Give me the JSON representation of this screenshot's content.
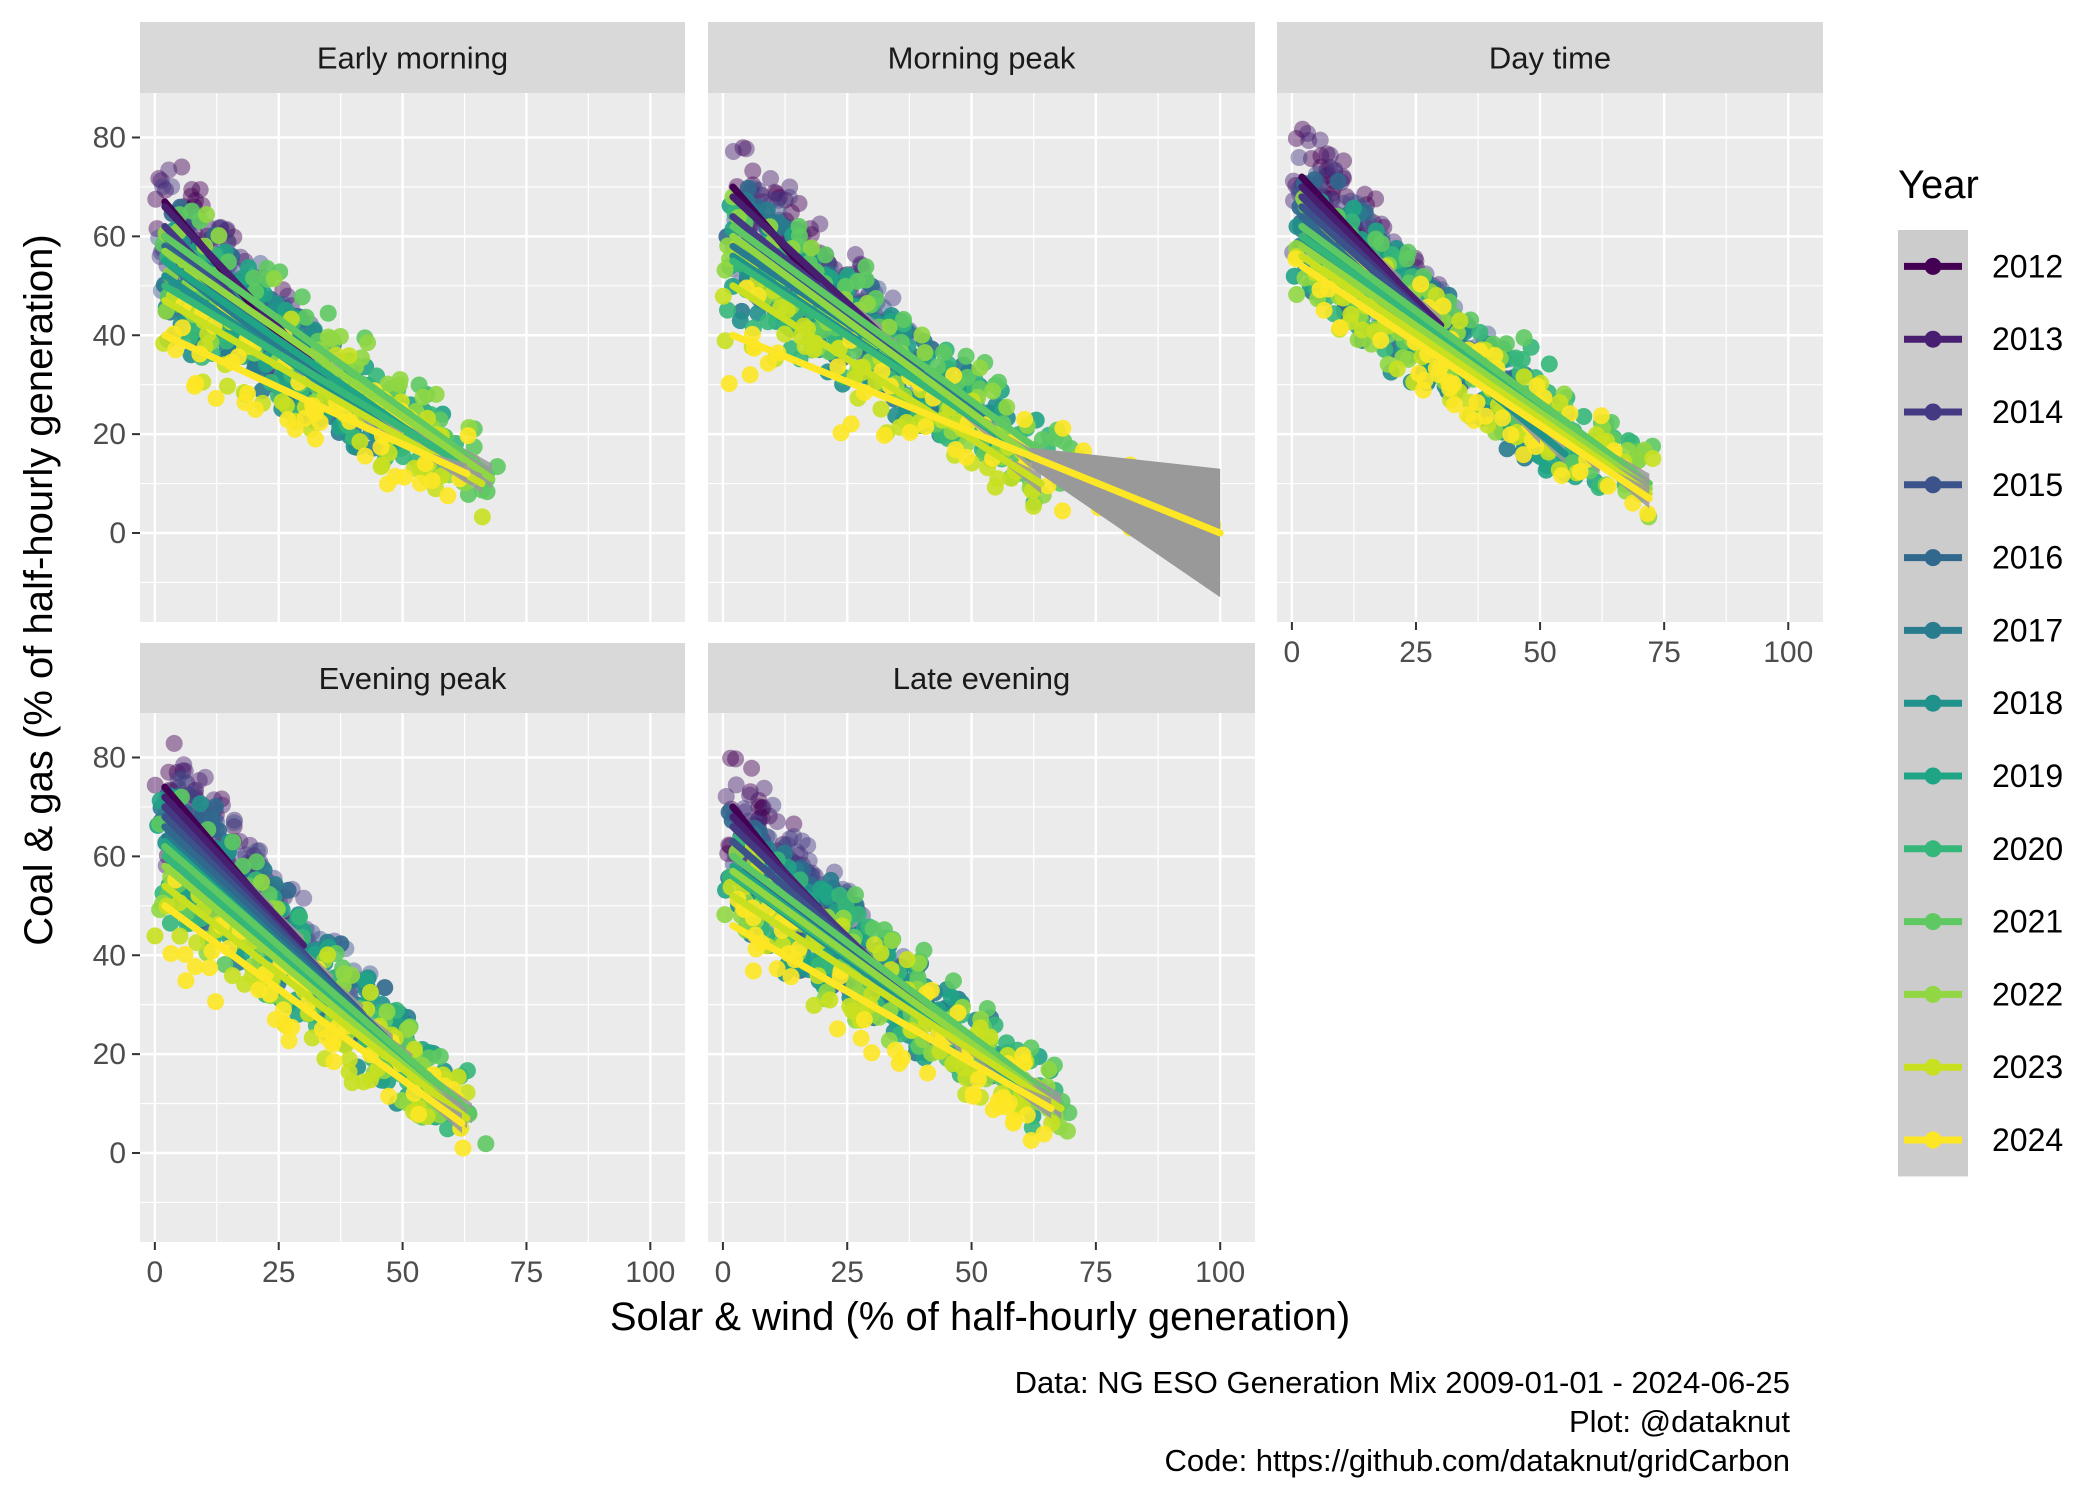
{
  "chart_data": {
    "type": "scatter",
    "xlabel": "Solar & wind (% of half-hourly generation)",
    "ylabel": "Coal & gas (% of half-hourly generation)",
    "xlim": [
      -3,
      107
    ],
    "ylim": [
      -18,
      89
    ],
    "x_ticks": [
      0,
      25,
      50,
      75,
      100
    ],
    "y_ticks": [
      0,
      20,
      40,
      60,
      80
    ],
    "grid": true,
    "legend": {
      "title": "Year",
      "position": "right",
      "entries": [
        "2012",
        "2013",
        "2014",
        "2015",
        "2016",
        "2017",
        "2018",
        "2019",
        "2020",
        "2021",
        "2022",
        "2023",
        "2024"
      ]
    },
    "colors": [
      "#440154",
      "#482878",
      "#3e4989",
      "#31688e",
      "#26828e",
      "#1f9e89",
      "#35b779",
      "#6ece58",
      "#b5de2b",
      "#fde725"
    ],
    "year_colors": {
      "2012": "#440154",
      "2013": "#481f70",
      "2014": "#443983",
      "2015": "#3b528b",
      "2016": "#31688e",
      "2017": "#287c8e",
      "2018": "#21918c",
      "2019": "#20a486",
      "2020": "#35b779",
      "2021": "#5ec962",
      "2022": "#90d743",
      "2023": "#c8e020",
      "2024": "#fde725"
    },
    "panels": [
      {
        "name": "Early morning",
        "trend_segments": [
          {
            "year": "2012",
            "x": [
              2,
              28
            ],
            "y": [
              67,
              36
            ]
          },
          {
            "year": "2013",
            "x": [
              2,
              32
            ],
            "y": [
              66,
              34
            ]
          },
          {
            "year": "2014",
            "x": [
              2,
              30
            ],
            "y": [
              62,
              33
            ]
          },
          {
            "year": "2015",
            "x": [
              2,
              34
            ],
            "y": [
              60,
              30
            ]
          },
          {
            "year": "2016",
            "x": [
              2,
              40
            ],
            "y": [
              58,
              26
            ]
          },
          {
            "year": "2017",
            "x": [
              2,
              45
            ],
            "y": [
              55,
              22
            ]
          },
          {
            "year": "2018",
            "x": [
              2,
              50
            ],
            "y": [
              52,
              19
            ]
          },
          {
            "year": "2019",
            "x": [
              2,
              58
            ],
            "y": [
              55,
              16
            ]
          },
          {
            "year": "2020",
            "x": [
              2,
              62
            ],
            "y": [
              50,
              14
            ]
          },
          {
            "year": "2021",
            "x": [
              2,
              68
            ],
            "y": [
              60,
              12
            ]
          },
          {
            "year": "2022",
            "x": [
              2,
              68
            ],
            "y": [
              57,
              11
            ]
          },
          {
            "year": "2023",
            "x": [
              2,
              66
            ],
            "y": [
              47,
              10
            ]
          },
          {
            "year": "2024",
            "x": [
              2,
              63
            ],
            "y": [
              40,
              12
            ]
          }
        ]
      },
      {
        "name": "Morning peak",
        "trend_segments": [
          {
            "year": "2012",
            "x": [
              2,
              26
            ],
            "y": [
              70,
              42
            ]
          },
          {
            "year": "2013",
            "x": [
              2,
              32
            ],
            "y": [
              68,
              40
            ]
          },
          {
            "year": "2014",
            "x": [
              2,
              35
            ],
            "y": [
              64,
              37
            ]
          },
          {
            "year": "2015",
            "x": [
              2,
              40
            ],
            "y": [
              62,
              33
            ]
          },
          {
            "year": "2016",
            "x": [
              2,
              45
            ],
            "y": [
              60,
              28
            ]
          },
          {
            "year": "2017",
            "x": [
              2,
              52
            ],
            "y": [
              58,
              24
            ]
          },
          {
            "year": "2018",
            "x": [
              2,
              55
            ],
            "y": [
              56,
              20
            ]
          },
          {
            "year": "2019",
            "x": [
              2,
              62
            ],
            "y": [
              60,
              15
            ]
          },
          {
            "year": "2020",
            "x": [
              2,
              66
            ],
            "y": [
              55,
              13
            ]
          },
          {
            "year": "2021",
            "x": [
              2,
              70
            ],
            "y": [
              62,
              12
            ]
          },
          {
            "year": "2022",
            "x": [
              2,
              68
            ],
            "y": [
              60,
              11
            ]
          },
          {
            "year": "2023",
            "x": [
              2,
              64
            ],
            "y": [
              50,
              10
            ]
          },
          {
            "year": "2024",
            "x": [
              2,
              100
            ],
            "y": [
              40,
              0
            ]
          }
        ]
      },
      {
        "name": "Day time",
        "trend_segments": [
          {
            "year": "2012",
            "x": [
              2,
              22
            ],
            "y": [
              72,
              50
            ]
          },
          {
            "year": "2013",
            "x": [
              2,
              30
            ],
            "y": [
              70,
              42
            ]
          },
          {
            "year": "2014",
            "x": [
              2,
              36
            ],
            "y": [
              68,
              35
            ]
          },
          {
            "year": "2015",
            "x": [
              2,
              42
            ],
            "y": [
              66,
              30
            ]
          },
          {
            "year": "2016",
            "x": [
              2,
              46
            ],
            "y": [
              64,
              24
            ]
          },
          {
            "year": "2017",
            "x": [
              2,
              50
            ],
            "y": [
              62,
              20
            ]
          },
          {
            "year": "2018",
            "x": [
              2,
              55
            ],
            "y": [
              60,
              16
            ]
          },
          {
            "year": "2019",
            "x": [
              2,
              62
            ],
            "y": [
              62,
              14
            ]
          },
          {
            "year": "2020",
            "x": [
              2,
              68
            ],
            "y": [
              60,
              12
            ]
          },
          {
            "year": "2021",
            "x": [
              2,
              72
            ],
            "y": [
              62,
              10
            ]
          },
          {
            "year": "2022",
            "x": [
              2,
              72
            ],
            "y": [
              58,
              9
            ]
          },
          {
            "year": "2023",
            "x": [
              2,
              72
            ],
            "y": [
              56,
              8
            ]
          },
          {
            "year": "2024",
            "x": [
              2,
              72
            ],
            "y": [
              54,
              7
            ]
          }
        ]
      },
      {
        "name": "Evening peak",
        "trend_segments": [
          {
            "year": "2012",
            "x": [
              2,
              24
            ],
            "y": [
              74,
              48
            ]
          },
          {
            "year": "2013",
            "x": [
              2,
              30
            ],
            "y": [
              72,
              42
            ]
          },
          {
            "year": "2014",
            "x": [
              2,
              36
            ],
            "y": [
              70,
              34
            ]
          },
          {
            "year": "2015",
            "x": [
              2,
              42
            ],
            "y": [
              68,
              28
            ]
          },
          {
            "year": "2016",
            "x": [
              2,
              48
            ],
            "y": [
              66,
              22
            ]
          },
          {
            "year": "2017",
            "x": [
              2,
              52
            ],
            "y": [
              64,
              18
            ]
          },
          {
            "year": "2018",
            "x": [
              2,
              56
            ],
            "y": [
              62,
              14
            ]
          },
          {
            "year": "2019",
            "x": [
              2,
              60
            ],
            "y": [
              63,
              10
            ]
          },
          {
            "year": "2020",
            "x": [
              2,
              62
            ],
            "y": [
              60,
              9
            ]
          },
          {
            "year": "2021",
            "x": [
              2,
              64
            ],
            "y": [
              62,
              8
            ]
          },
          {
            "year": "2022",
            "x": [
              2,
              62
            ],
            "y": [
              58,
              8
            ]
          },
          {
            "year": "2023",
            "x": [
              2,
              63
            ],
            "y": [
              54,
              7
            ]
          },
          {
            "year": "2024",
            "x": [
              2,
              62
            ],
            "y": [
              50,
              6
            ]
          }
        ]
      },
      {
        "name": "Late evening",
        "trend_segments": [
          {
            "year": "2012",
            "x": [
              2,
              24
            ],
            "y": [
              70,
              42
            ]
          },
          {
            "year": "2013",
            "x": [
              2,
              30
            ],
            "y": [
              68,
              38
            ]
          },
          {
            "year": "2014",
            "x": [
              2,
              36
            ],
            "y": [
              66,
              33
            ]
          },
          {
            "year": "2015",
            "x": [
              2,
              42
            ],
            "y": [
              63,
              28
            ]
          },
          {
            "year": "2016",
            "x": [
              2,
              48
            ],
            "y": [
              60,
              22
            ]
          },
          {
            "year": "2017",
            "x": [
              2,
              54
            ],
            "y": [
              58,
              18
            ]
          },
          {
            "year": "2018",
            "x": [
              2,
              58
            ],
            "y": [
              56,
              15
            ]
          },
          {
            "year": "2019",
            "x": [
              2,
              62
            ],
            "y": [
              58,
              12
            ]
          },
          {
            "year": "2020",
            "x": [
              2,
              66
            ],
            "y": [
              56,
              11
            ]
          },
          {
            "year": "2021",
            "x": [
              2,
              68
            ],
            "y": [
              60,
              10
            ]
          },
          {
            "year": "2022",
            "x": [
              2,
              68
            ],
            "y": [
              57,
              9
            ]
          },
          {
            "year": "2023",
            "x": [
              2,
              68
            ],
            "y": [
              52,
              9
            ]
          },
          {
            "year": "2024",
            "x": [
              2,
              66
            ],
            "y": [
              46,
              9
            ]
          }
        ]
      }
    ],
    "caption": [
      "Data: NG ESO Generation Mix 2009-01-01 - 2024-06-25",
      "Plot: @dataknut",
      "Code: https://github.com/dataknut/gridCarbon"
    ]
  }
}
